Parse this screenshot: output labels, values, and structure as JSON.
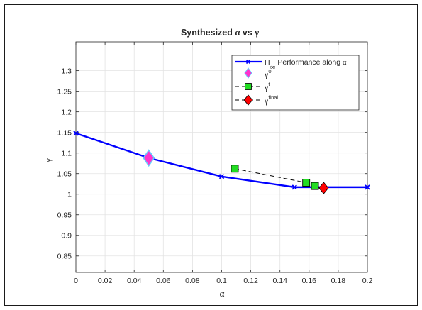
{
  "chart_data": {
    "type": "line",
    "title_text": "Synthesized ",
    "title_alpha": "α",
    "title_vs": " vs ",
    "title_gamma": "γ",
    "xlabel": "α",
    "ylabel": "γ",
    "xlim": [
      0,
      0.2
    ],
    "ylim": [
      0.81,
      1.37
    ],
    "xticks": [
      0,
      0.02,
      0.04,
      0.06,
      0.08,
      0.1,
      0.12,
      0.14,
      0.16,
      0.18,
      0.2
    ],
    "xtick_labels": [
      "0",
      "0.02",
      "0.04",
      "0.06",
      "0.08",
      "0.1",
      "0.12",
      "0.14",
      "0.16",
      "0.18",
      "0.2"
    ],
    "yticks": [
      0.85,
      0.9,
      0.95,
      1,
      1.05,
      1.1,
      1.15,
      1.2,
      1.25,
      1.3
    ],
    "ytick_labels": [
      "0.85",
      "0.9",
      "0.95",
      "1",
      "1.05",
      "1.1",
      "1.15",
      "1.2",
      "1.25",
      "1.3"
    ],
    "grid": true,
    "legend_position": "top-right",
    "series": [
      {
        "name": "H∞ Performance along α",
        "legend_main": "H",
        "legend_sub": "∞",
        "legend_rest": "  Performance along ",
        "legend_alpha": "α",
        "style": "line-x",
        "color": "#0000ff",
        "x": [
          0,
          0.05,
          0.1,
          0.15,
          0.2
        ],
        "y": [
          1.148,
          1.088,
          1.043,
          1.017,
          1.017
        ]
      },
      {
        "name": "γ0",
        "legend_main": "γ",
        "legend_sup": "0",
        "style": "diamond",
        "color": "#ff33cc",
        "edge": "#66ccff",
        "x": [
          0.05
        ],
        "y": [
          1.088
        ]
      },
      {
        "name": "γt",
        "legend_main": "γ",
        "legend_sup": "t",
        "style": "dashed-square",
        "color": "#22dd22",
        "edge": "#000000",
        "x": [
          0.109,
          0.158,
          0.164
        ],
        "y": [
          1.062,
          1.028,
          1.02
        ]
      },
      {
        "name": "γfinal",
        "legend_main": "γ",
        "legend_sup": "final",
        "style": "dashed-diamond",
        "color": "#ff0000",
        "edge": "#000000",
        "x": [
          0.17
        ],
        "y": [
          1.015
        ]
      }
    ]
  }
}
